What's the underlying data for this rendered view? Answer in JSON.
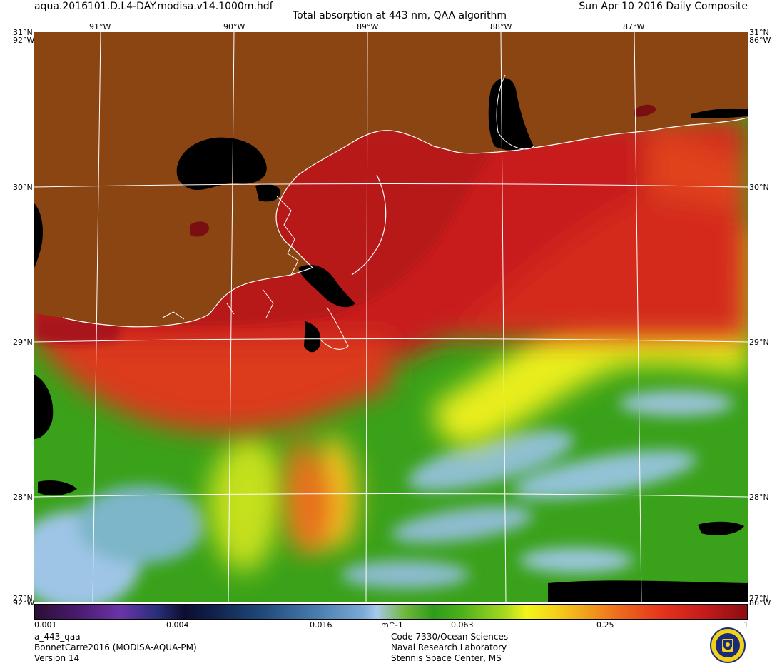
{
  "header": {
    "filename": "aqua.2016101.D.L4-DAY.modisa.v14.1000m.hdf",
    "title": "Total absorption at 443 nm, QAA algorithm",
    "date": "Sun Apr 10 2016 Daily Composite"
  },
  "axes": {
    "top_lon_labels": [
      "91°W",
      "90°W",
      "89°W",
      "88°W",
      "87°W"
    ],
    "corner_top_left": "31°N",
    "corner_top_right": "31°N",
    "left_lat_labels": [
      "30°N",
      "29°N",
      "28°N"
    ],
    "right_lat_labels": [
      "30°N",
      "29°N",
      "28°N"
    ],
    "edge_left_top": "92°W",
    "edge_right_top": "86°W",
    "edge_left_bottom": "92°W",
    "edge_right_bottom": "86°W",
    "corner_bottom_left": "27°N",
    "corner_bottom_right": "27°N"
  },
  "colorbar": {
    "labels": [
      "0.001",
      "0.004",
      "0.016",
      "m^-1",
      "0.063",
      "0.25",
      "1"
    ],
    "scale": "log",
    "range": [
      0.001,
      1
    ]
  },
  "footer": {
    "left": [
      "a_443_qaa",
      "BonnetCarre2016 (MODISA-AQUA-PM)",
      "Version 14"
    ],
    "right": [
      "Code 7330/Ocean Sciences",
      "Naval Research Laboratory",
      "Stennis Space Center, MS"
    ]
  },
  "colors": {
    "land": "#8B4513",
    "no_data": "#000000",
    "grid": "#ffffff",
    "high_absorption": "#c51b1b",
    "medium_absorption": "#f2f51a",
    "low_absorption": "#2e9b1a",
    "very_low_absorption": "#a8c8ea"
  },
  "logo": {
    "name": "nrl-seal-icon"
  }
}
